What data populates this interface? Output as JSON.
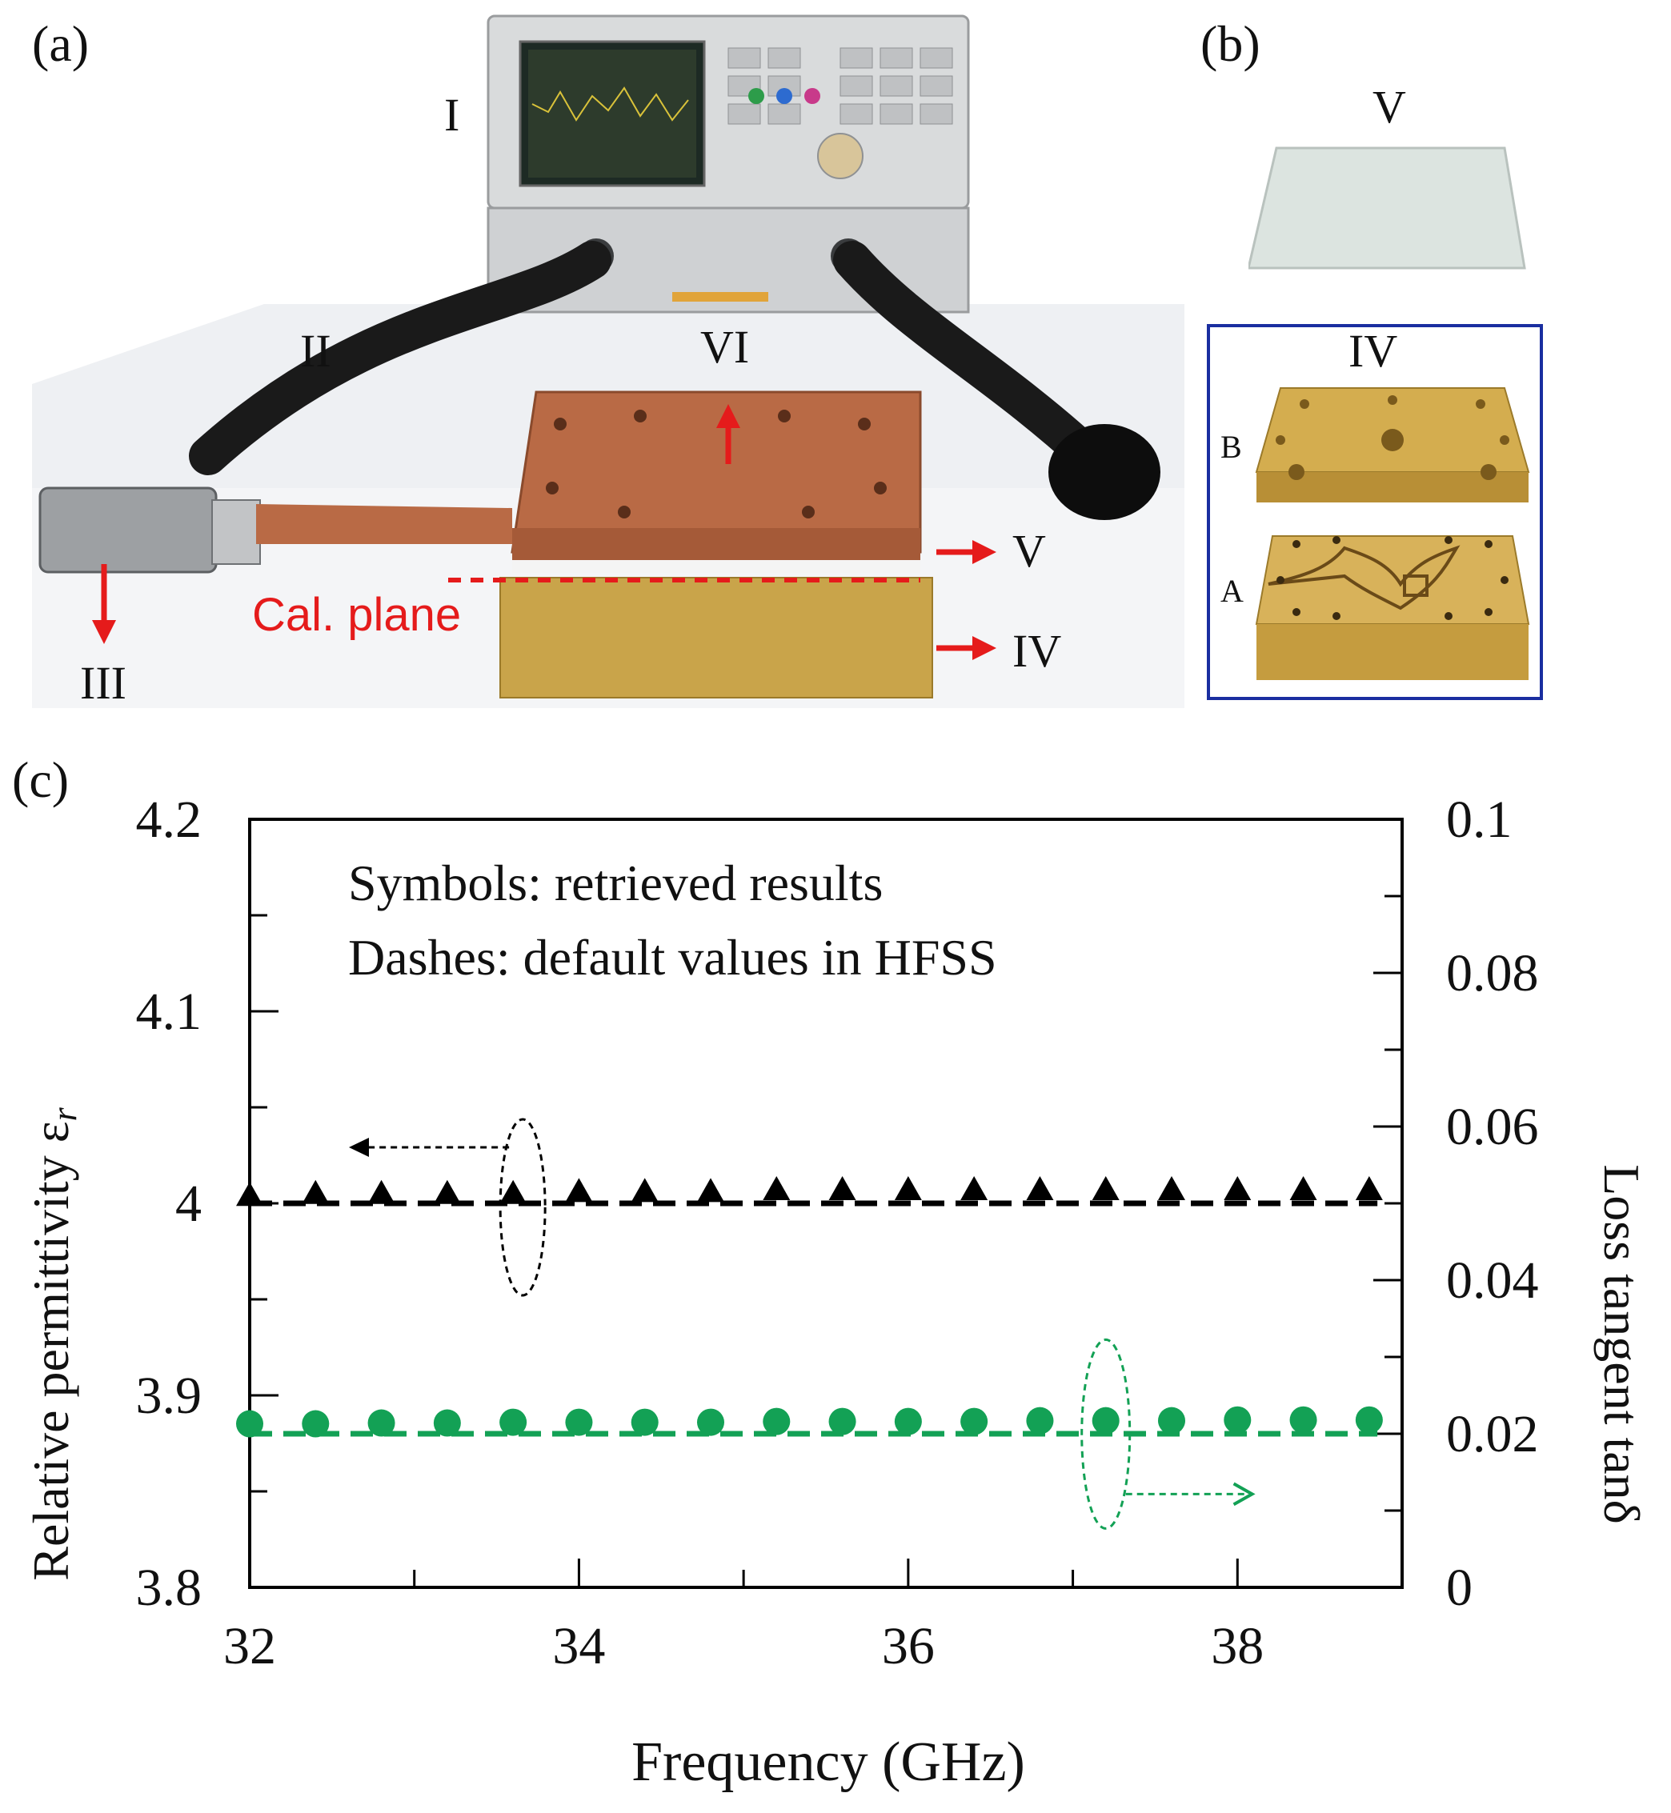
{
  "panels": {
    "a": "(a)",
    "b": "(b)",
    "c": "(c)"
  },
  "photo_labels": {
    "I": "I",
    "II": "II",
    "III": "III",
    "IV": "IV",
    "V": "V",
    "VI": "VI",
    "cal_plane": "Cal. plane",
    "b_V": "V",
    "b_IV": "IV",
    "b_A": "A",
    "b_B": "B"
  },
  "colors": {
    "copper": "#b96a45",
    "brass": "#c9a44a",
    "red_arrow": "#e51b1b",
    "frame_blue": "#1a2ea0",
    "series_black": "#000000",
    "series_green": "#13a155"
  },
  "chart_data": {
    "type": "scatter",
    "xlabel": "Frequency (GHz)",
    "ylabel_left": "Relative permittivity ε",
    "ylabel_left_sub": "r",
    "ylabel_right": "Loss tangent tanδ",
    "xlim": [
      32,
      39
    ],
    "xticks": [
      "32",
      "34",
      "36",
      "38"
    ],
    "xtick_values": [
      32,
      34,
      36,
      38
    ],
    "ylim_left": [
      3.8,
      4.2
    ],
    "yticks_left": [
      "3.8",
      "3.9",
      "4",
      "4.1",
      "4.2"
    ],
    "ytick_values_left": [
      3.8,
      3.9,
      4.0,
      4.1,
      4.2
    ],
    "ylim_right": [
      0,
      0.1
    ],
    "yticks_right": [
      "0",
      "0.02",
      "0.04",
      "0.06",
      "0.08",
      "0.1"
    ],
    "ytick_values_right": [
      0,
      0.02,
      0.04,
      0.06,
      0.08,
      0.1
    ],
    "annotations": [
      "Symbols: retrieved results",
      "Dashes: default values in HFSS"
    ],
    "grid": false,
    "series": [
      {
        "axis": "left",
        "marker": "triangle",
        "color": "#000000",
        "x": [
          32.0,
          32.4,
          32.8,
          33.2,
          33.6,
          34.0,
          34.4,
          34.8,
          35.2,
          35.6,
          36.0,
          36.4,
          36.8,
          37.2,
          37.6,
          38.0,
          38.4,
          38.8
        ],
        "values": [
          4.002,
          4.003,
          4.003,
          4.003,
          4.003,
          4.004,
          4.004,
          4.004,
          4.005,
          4.005,
          4.005,
          4.005,
          4.005,
          4.005,
          4.005,
          4.005,
          4.005,
          4.005
        ]
      },
      {
        "axis": "right",
        "marker": "circle",
        "color": "#13a155",
        "x": [
          32.0,
          32.4,
          32.8,
          33.2,
          33.6,
          34.0,
          34.4,
          34.8,
          35.2,
          35.6,
          36.0,
          36.4,
          36.8,
          37.2,
          37.6,
          38.0,
          38.4,
          38.8
        ],
        "values": [
          0.0213,
          0.0213,
          0.0214,
          0.0214,
          0.0215,
          0.0215,
          0.0215,
          0.0215,
          0.0216,
          0.0216,
          0.0216,
          0.0216,
          0.0217,
          0.0217,
          0.0217,
          0.0218,
          0.0218,
          0.0218
        ]
      },
      {
        "axis": "left",
        "style": "dashed",
        "color": "#000000",
        "x": [
          32,
          38.85
        ],
        "values": [
          4.0,
          4.0
        ]
      },
      {
        "axis": "right",
        "style": "dashed",
        "color": "#13a155",
        "x": [
          32,
          38.85
        ],
        "values": [
          0.02,
          0.02
        ]
      }
    ]
  }
}
